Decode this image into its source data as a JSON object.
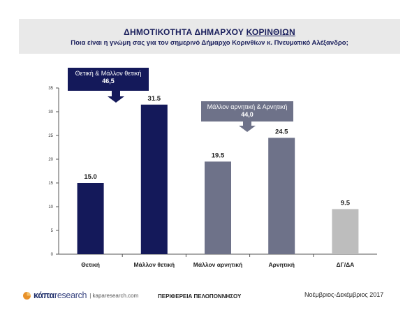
{
  "header": {
    "title_main": "ΔΗΜΟΤΙΚΟΤΗΤΑ ΔΗΜΑΡΧΟΥ ",
    "title_underlined": "ΚΟΡΙΝΘΙΩΝ",
    "subtitle": "Ποια είναι η γνώμη σας για τον σημερινό Δήμαρχο Κορινθίων κ. Πνευματικό Αλέξανδρο;"
  },
  "callouts": {
    "positive": {
      "label": "Θετική & Μάλλον θετική",
      "value": "46,5"
    },
    "negative": {
      "label": "Μάλλον αρνητική & Αρνητική",
      "value": "44,0"
    }
  },
  "chart_data": {
    "type": "bar",
    "categories": [
      "Θετική",
      "Μάλλον θετική",
      "Μάλλον αρνητική",
      "Αρνητική",
      "ΔΓ/ΔΑ"
    ],
    "values": [
      15.0,
      31.5,
      19.5,
      24.5,
      9.5
    ],
    "value_labels": [
      "15.0",
      "31.5",
      "19.5",
      "24.5",
      "9.5"
    ],
    "colors": [
      "#14195a",
      "#14195a",
      "#6e7289",
      "#6e7289",
      "#bdbdbd"
    ],
    "ylim": [
      0,
      35
    ],
    "yticks": [
      0,
      5,
      10,
      15,
      20,
      25,
      30,
      35
    ],
    "grid": false
  },
  "footer": {
    "brand_a": "κάπα",
    "brand_b": "research",
    "site": "| kaparesearch.com",
    "region": "ΠΕΡΙΦΕΡΕΙΑ ΠΕΛΟΠΟΝΝΗΣΟΥ",
    "date": "Νοέμβριος-Δεκέμβριος 2017"
  }
}
